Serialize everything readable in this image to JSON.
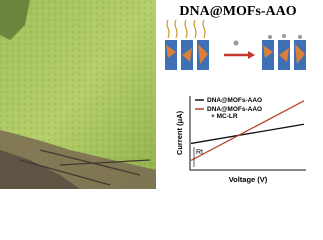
{
  "heading": "DNA@MOFs-AAO",
  "chart_data": {
    "type": "line",
    "x_label": "Voltage (V)",
    "y_label": "Current (μA)",
    "annotation": "Rt",
    "x": [
      0,
      10
    ],
    "xlim": [
      0,
      10
    ],
    "ylim": [
      0,
      10
    ],
    "legend": "top-left",
    "series": [
      {
        "name": "DNA@MOFs-AAO",
        "color": "#111111",
        "values": [
          3.6,
          6.3
        ]
      },
      {
        "name": "DNA@MOFs-AAO\n+ MC-LR",
        "color": "#b5452a",
        "values": [
          1.2,
          9.6
        ]
      }
    ]
  }
}
